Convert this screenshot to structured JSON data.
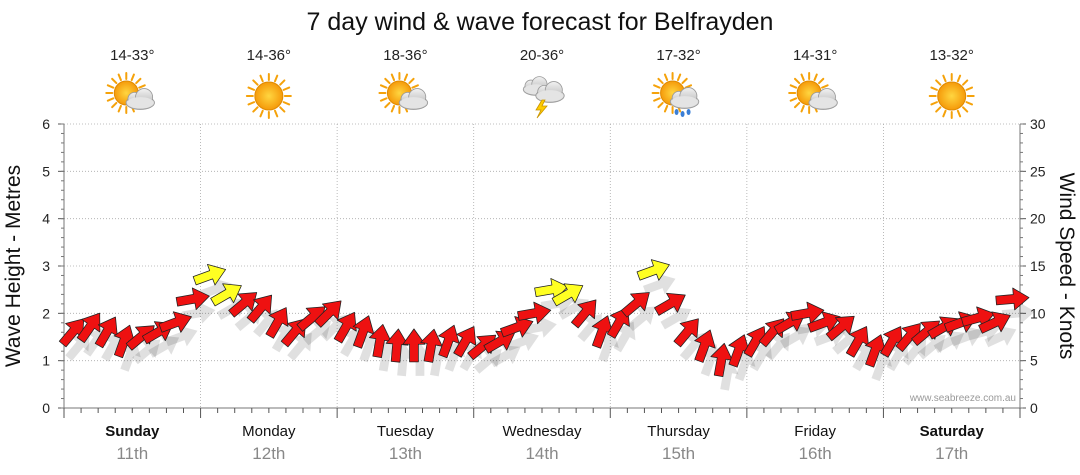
{
  "title": "7 day wind & wave forecast for Belfrayden",
  "credit": "www.seabreeze.com.au",
  "colors": {
    "wind_normal": "#ee1111",
    "wind_strong": "#ffff22",
    "grid": "#aaaaaa"
  },
  "days": [
    {
      "name": "Sunday",
      "date": "11th",
      "temp": "14-33°",
      "icon": "partly-cloudy-icon",
      "bold": true
    },
    {
      "name": "Monday",
      "date": "12th",
      "temp": "14-36°",
      "icon": "sunny-icon",
      "bold": false
    },
    {
      "name": "Tuesday",
      "date": "13th",
      "temp": "18-36°",
      "icon": "partly-cloudy-icon",
      "bold": false
    },
    {
      "name": "Wednesday",
      "date": "14th",
      "temp": "20-36°",
      "icon": "thunderstorm-icon",
      "bold": false
    },
    {
      "name": "Thursday",
      "date": "15th",
      "temp": "17-32°",
      "icon": "shower-icon",
      "bold": false
    },
    {
      "name": "Friday",
      "date": "16th",
      "temp": "14-31°",
      "icon": "partly-cloudy-icon",
      "bold": false
    },
    {
      "name": "Saturday",
      "date": "17th",
      "temp": "13-32°",
      "icon": "sunny-icon",
      "bold": true
    }
  ],
  "chart_data": {
    "type": "line",
    "ylabel_left": "Wave Height - Metres",
    "ylabel_right": "Wind Speed - Knots",
    "ylim_left": [
      0,
      6
    ],
    "ylim_right": [
      0,
      30
    ],
    "yticks_left": [
      "0",
      "1",
      "2",
      "3",
      "4",
      "5",
      "6"
    ],
    "yticks_right": [
      "0",
      "5",
      "10",
      "15",
      "20",
      "25",
      "30"
    ],
    "grid": true,
    "series": [
      {
        "x": [
          0,
          0.125,
          0.25,
          0.375,
          0.5,
          0.625,
          0.75,
          0.875,
          1,
          1.125,
          1.25,
          1.375,
          1.5,
          1.625,
          1.75,
          1.875,
          2,
          2.125,
          2.25,
          2.375,
          2.5,
          2.625,
          2.75,
          2.875,
          3,
          3.125,
          3.25,
          3.375,
          3.5,
          3.625,
          3.75,
          3.875,
          4,
          4.125,
          4.25,
          4.375,
          4.5,
          4.625,
          4.75,
          4.875,
          5,
          5.125,
          5.25,
          5.375,
          5.5,
          5.625,
          5.75,
          5.875,
          6,
          6.125,
          6.25,
          6.375,
          6.5,
          6.625,
          6.75,
          6.875
        ],
        "y": [
          8,
          8.5,
          8,
          7,
          7.5,
          8,
          9,
          11.5,
          14,
          12,
          11,
          10.5,
          9,
          8,
          9.5,
          10,
          8.5,
          8,
          7,
          6.5,
          6.5,
          6.5,
          7,
          7,
          6.5,
          7,
          8.5,
          10,
          12.5,
          12,
          10,
          8,
          9,
          11,
          14.5,
          11,
          8,
          6.5,
          5,
          6,
          7,
          8,
          9,
          10,
          9,
          8.5,
          7,
          6,
          7,
          7.5,
          8,
          8.5,
          9,
          9.5,
          9,
          11.5
        ],
        "direction_deg": [
          220,
          215,
          210,
          200,
          230,
          240,
          250,
          260,
          250,
          240,
          230,
          220,
          210,
          220,
          230,
          225,
          210,
          200,
          190,
          185,
          180,
          190,
          200,
          210,
          230,
          240,
          250,
          260,
          260,
          240,
          220,
          200,
          210,
          230,
          250,
          240,
          220,
          200,
          190,
          200,
          210,
          220,
          240,
          260,
          250,
          230,
          210,
          200,
          210,
          220,
          230,
          240,
          250,
          255,
          245,
          265
        ]
      }
    ]
  }
}
